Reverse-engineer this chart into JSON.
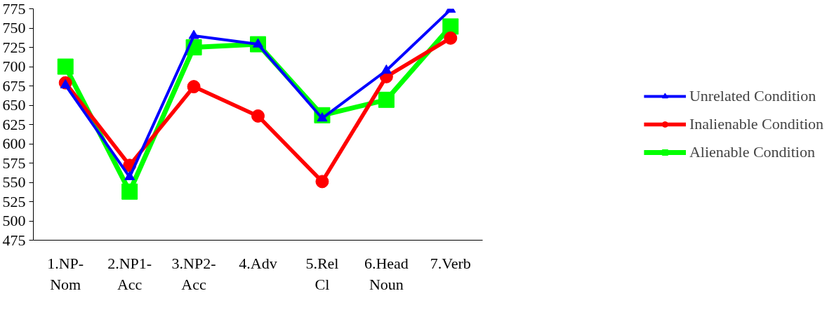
{
  "chart_data": {
    "type": "line",
    "categories": [
      "1.NP-\nNom",
      "2.NP1-\nAcc",
      "3.NP2-\nAcc",
      "4.Adv",
      "5.Rel\nCl",
      "6.Head\nNoun",
      "7.Verb"
    ],
    "ylim": [
      475,
      775
    ],
    "yticks": [
      475,
      500,
      525,
      550,
      575,
      600,
      625,
      650,
      675,
      700,
      725,
      750,
      775
    ],
    "grid": false,
    "legend": "right",
    "line_style": "solid",
    "series": [
      {
        "name": "Unrelated Condition",
        "color": "#0000ff",
        "marker": "triangle",
        "values": [
          676,
          557,
          740,
          729,
          633,
          695,
          774
        ]
      },
      {
        "name": "Inalienable Condition",
        "color": "#ff0000",
        "marker": "circle",
        "values": [
          679,
          572,
          674,
          636,
          551,
          687,
          737
        ]
      },
      {
        "name": "Alienable Condition",
        "color": "#00ff00",
        "marker": "square",
        "values": [
          700,
          538,
          725,
          729,
          637,
          657,
          752
        ]
      }
    ]
  }
}
